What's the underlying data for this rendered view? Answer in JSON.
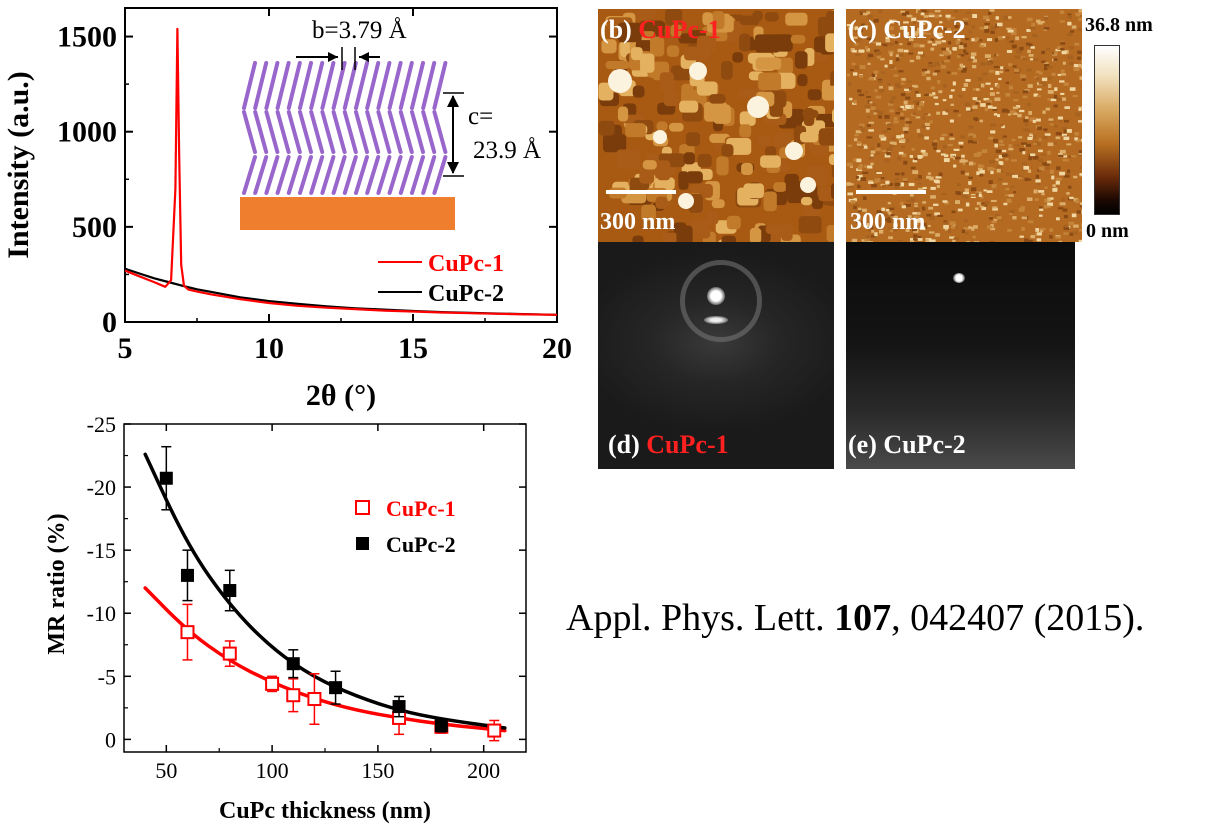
{
  "colors": {
    "cupc1": "#ff0000",
    "cupc2": "#000000",
    "substrate": "#ef7f2f",
    "molecule": "#9966cc"
  },
  "chart_data": [
    {
      "type": "line",
      "xlabel": "2θ (°)",
      "ylabel": "Intensity (a.u.)",
      "xlim": [
        5,
        20
      ],
      "ylim": [
        0,
        1650
      ],
      "xticks": [
        5,
        10,
        15,
        20
      ],
      "yticks": [
        0,
        500,
        1000,
        1500
      ],
      "legend_position": "bottom-right",
      "series": [
        {
          "name": "CuPc-1",
          "color": "#ff0000",
          "x": [
            5.0,
            5.5,
            6.0,
            6.4,
            6.6,
            6.75,
            6.82,
            6.88,
            6.95,
            7.05,
            7.2,
            7.5,
            8,
            9,
            10,
            11,
            12,
            13,
            14,
            15,
            16,
            17,
            18,
            19,
            20
          ],
          "y": [
            270,
            240,
            210,
            185,
            220,
            700,
            1540,
            900,
            300,
            190,
            170,
            160,
            145,
            120,
            100,
            85,
            75,
            68,
            60,
            55,
            50,
            46,
            43,
            40,
            38
          ]
        },
        {
          "name": "CuPc-2",
          "color": "#000000",
          "x": [
            5.0,
            5.5,
            6.0,
            6.5,
            7.0,
            7.5,
            8,
            9,
            10,
            11,
            12,
            13,
            14,
            15,
            16,
            17,
            18,
            19,
            20
          ],
          "y": [
            280,
            255,
            230,
            210,
            190,
            172,
            158,
            130,
            110,
            95,
            82,
            72,
            65,
            58,
            52,
            48,
            44,
            41,
            38
          ]
        }
      ],
      "inset": {
        "b_label": "b=3.79 Å",
        "c_label_1": "c=",
        "c_label_2": "23.9 Å"
      }
    },
    {
      "type": "scatter",
      "xlabel": "CuPc thickness (nm)",
      "ylabel": "MR ratio (%)",
      "xlim": [
        30,
        220
      ],
      "ylim": [
        1,
        -25
      ],
      "xticks": [
        50,
        100,
        150,
        200
      ],
      "yticks": [
        0,
        -5,
        -10,
        -15,
        -20,
        -25
      ],
      "legend_position": "top-right",
      "series": [
        {
          "name": "CuPc-1",
          "color": "#ff0000",
          "marker": "open-square",
          "x": [
            60,
            80,
            100,
            110,
            120,
            160,
            180,
            205
          ],
          "y": [
            -8.5,
            -6.8,
            -4.4,
            -3.5,
            -3.2,
            -1.7,
            -1.0,
            -0.7
          ],
          "err": [
            2.2,
            1.0,
            0.6,
            1.3,
            2.0,
            1.3,
            0.5,
            0.8
          ],
          "fit": {
            "x": [
              40,
              60,
              80,
              100,
              120,
              140,
              160,
              180,
              210
            ],
            "y": [
              -12.0,
              -8.6,
              -6.2,
              -4.5,
              -3.2,
              -2.3,
              -1.7,
              -1.2,
              -0.7
            ]
          }
        },
        {
          "name": "CuPc-2",
          "color": "#000000",
          "marker": "filled-square",
          "x": [
            50,
            60,
            80,
            110,
            130,
            160,
            180
          ],
          "y": [
            -20.7,
            -13.0,
            -11.8,
            -6.0,
            -4.1,
            -2.6,
            -1.1
          ],
          "err": [
            2.5,
            2.0,
            1.6,
            1.1,
            1.3,
            0.8,
            0.5
          ],
          "fit": {
            "x": [
              40,
              60,
              80,
              100,
              120,
              140,
              160,
              180,
              210
            ],
            "y": [
              -22.6,
              -15.4,
              -10.6,
              -7.2,
              -4.9,
              -3.4,
              -2.3,
              -1.6,
              -0.9
            ]
          }
        }
      ]
    }
  ],
  "images": {
    "b": {
      "label_letter": "(b)",
      "label_sample": "CuPc-1",
      "scalebar": "300 nm"
    },
    "c": {
      "label_letter": "(c)",
      "label_sample": "CuPc-2",
      "scalebar": "300 nm"
    },
    "d": {
      "label_letter": "(d)",
      "label_sample": "CuPc-1"
    },
    "e": {
      "label_letter": "(e)",
      "label_sample": "CuPc-2"
    },
    "colorbar": {
      "max_label": "36.8 nm",
      "min_label": "0 nm"
    }
  },
  "citation": {
    "journal": "Appl. Phys. Lett. ",
    "volume": "107",
    "rest": ", 042407 (2015)."
  }
}
